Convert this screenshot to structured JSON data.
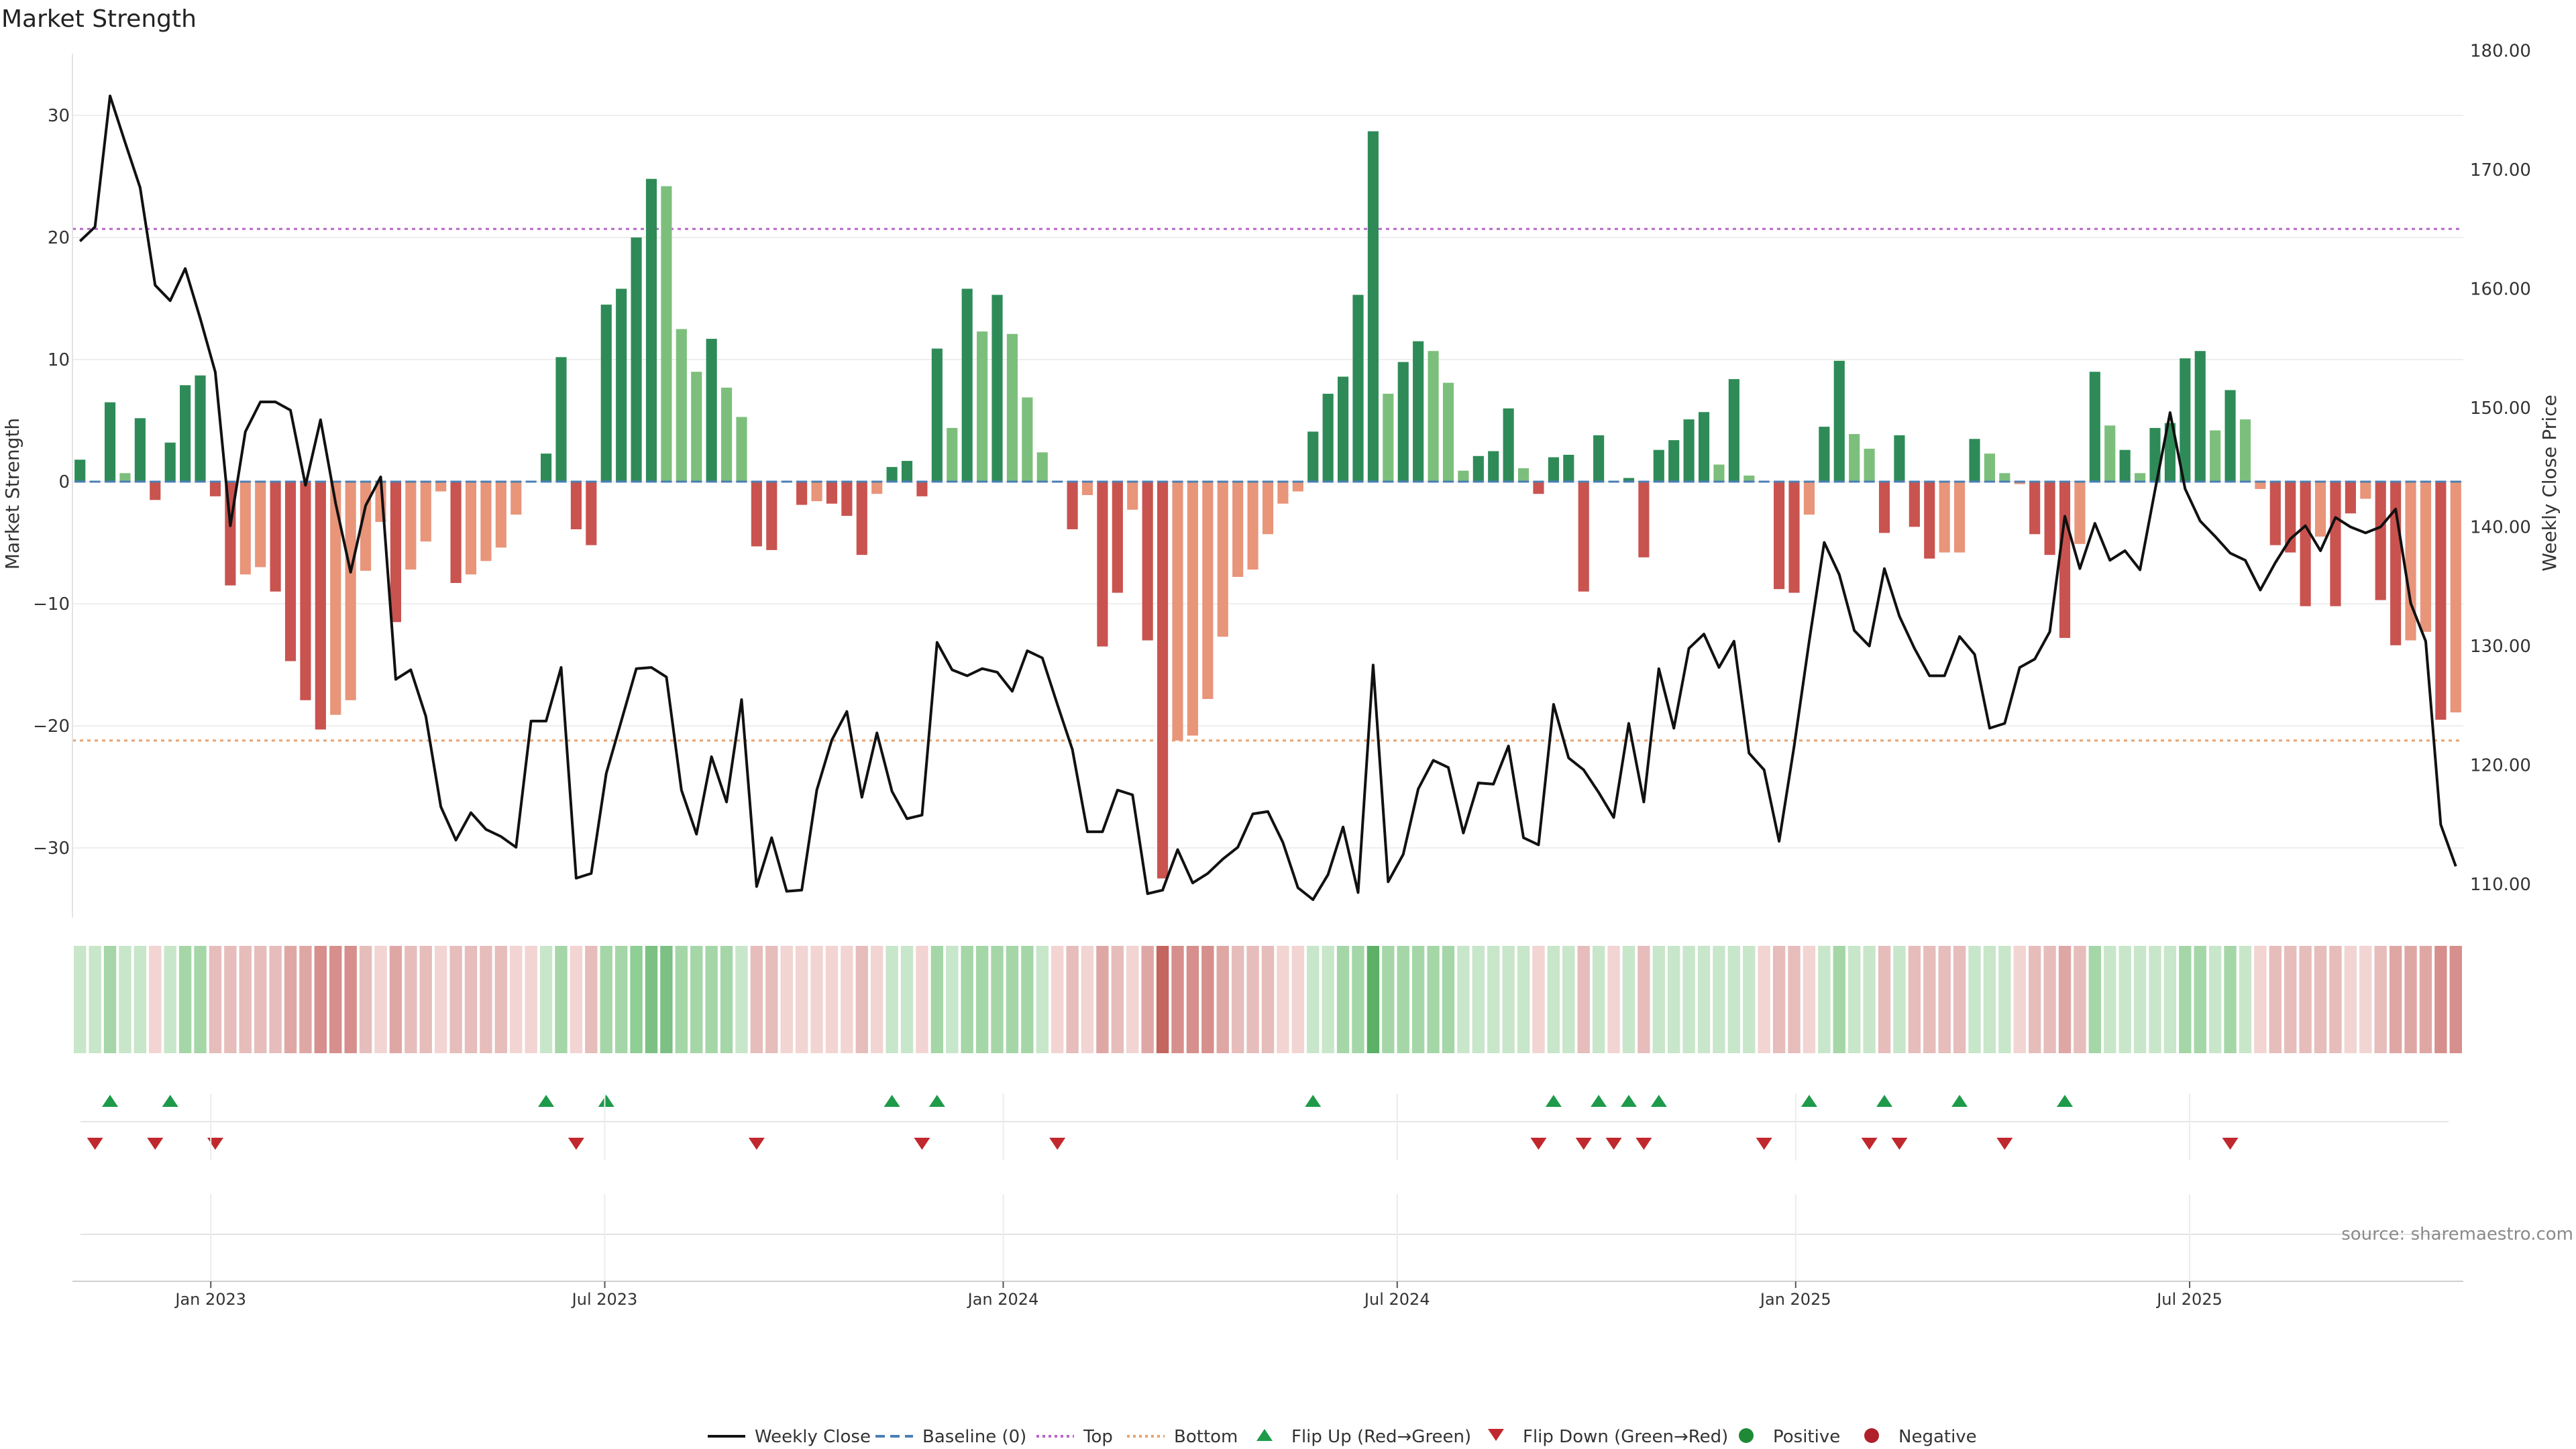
{
  "chart_data": {
    "type": "bar",
    "title": "Market Strength",
    "ylabel_left": "Market Strength",
    "ylabel_right": "Weekly Close Price",
    "source": "source: sharemaestro.com",
    "ylim_left": [
      -35,
      35
    ],
    "yticks_left": [
      30,
      20,
      10,
      0,
      -10,
      -20,
      -30
    ],
    "ytick_labels_left": [
      "30",
      "20",
      "10",
      "0",
      "−10",
      "−20",
      "−30"
    ],
    "ylim_right": [
      110,
      180
    ],
    "yticks_right": [
      180,
      170,
      160,
      150,
      140,
      130,
      120,
      110
    ],
    "ytick_labels_right": [
      "180.00",
      "170.00",
      "160.00",
      "150.00",
      "140.00",
      "130.00",
      "120.00",
      "110.00"
    ],
    "xlim_week": [
      -0.5,
      158.5
    ],
    "xtick_weeks": [
      8.7,
      34.9,
      61.4,
      87.6,
      114.1,
      140.3
    ],
    "xtick_labels": [
      "Jan 2023",
      "Jul 2023",
      "Jan 2024",
      "Jul 2024",
      "Jan 2025",
      "Jul 2025"
    ],
    "top_line": 20.7,
    "bottom_line": -21.2,
    "strength": [
      1.8,
      0,
      6.5,
      0.7,
      5.2,
      -1.5,
      3.2,
      7.9,
      8.7,
      -1.2,
      -8.5,
      -7.6,
      -7,
      -9,
      -14.7,
      -17.9,
      -20.3,
      -19.1,
      -17.9,
      -7.3,
      -3.3,
      -11.5,
      -7.2,
      -4.9,
      -0.8,
      -8.3,
      -7.6,
      -6.5,
      -5.4,
      -2.7,
      0,
      2.3,
      10.2,
      -3.9,
      -5.2,
      14.5,
      15.8,
      20,
      24.8,
      24.2,
      12.5,
      9,
      11.7,
      7.7,
      5.3,
      -5.3,
      -5.6,
      0,
      -1.9,
      -1.6,
      -1.8,
      -2.8,
      -6,
      -1,
      1.2,
      1.7,
      -1.2,
      10.9,
      4.4,
      15.8,
      12.3,
      15.3,
      12.1,
      6.9,
      2.4,
      0,
      -3.9,
      -1.1,
      -13.5,
      -9.1,
      -2.3,
      -13,
      -32.5,
      -21.2,
      -20.8,
      -17.8,
      -12.7,
      -7.8,
      -7.2,
      -4.3,
      -1.8,
      -0.8,
      4.1,
      7.2,
      8.6,
      15.3,
      28.7,
      7.2,
      9.8,
      11.5,
      10.7,
      8.1,
      0.9,
      2.1,
      2.5,
      6,
      1.1,
      -1,
      2,
      2.2,
      -9,
      3.8,
      0,
      0.3,
      -6.2,
      2.6,
      3.4,
      5.1,
      5.7,
      1.4,
      8.4,
      0.5,
      0,
      -8.8,
      -9.1,
      -2.7,
      4.5,
      9.9,
      3.9,
      2.7,
      -4.2,
      3.8,
      -3.7,
      -6.3,
      -5.8,
      -5.8,
      3.5,
      2.3,
      0.7,
      -0.2,
      -4.3,
      -6,
      -12.8,
      -5.1,
      9,
      4.6,
      2.6,
      0.7,
      4.4,
      4.8,
      10.1,
      10.7,
      4.2,
      7.5,
      5.1,
      -0.6,
      -5.2,
      -5.8,
      -10.2,
      -4.5,
      -10.2,
      -2.6,
      -1.4,
      -9.7,
      -13.4,
      -13,
      -12.3,
      -19.5,
      -18.9
    ],
    "bar_colors": [
      "#2e8b57",
      "#7cbf7c",
      "#2e8b57",
      "#7cbf7c",
      "#2e8b57",
      "#c9534f",
      "#2e8b57",
      "#2e8b57",
      "#2e8b57",
      "#c9534f",
      "#c9534f",
      "#e8957a",
      "#e8957a",
      "#c9534f",
      "#c9534f",
      "#c9534f",
      "#c9534f",
      "#e8957a",
      "#e8957a",
      "#e8957a",
      "#e8957a",
      "#c9534f",
      "#e8957a",
      "#e8957a",
      "#e8957a",
      "#c9534f",
      "#e8957a",
      "#e8957a",
      "#e8957a",
      "#e8957a",
      "#7cbf7c",
      "#2e8b57",
      "#2e8b57",
      "#c9534f",
      "#c9534f",
      "#2e8b57",
      "#2e8b57",
      "#2e8b57",
      "#2e8b57",
      "#7cbf7c",
      "#7cbf7c",
      "#7cbf7c",
      "#2e8b57",
      "#7cbf7c",
      "#7cbf7c",
      "#c9534f",
      "#c9534f",
      "#7cbf7c",
      "#c9534f",
      "#e8957a",
      "#c9534f",
      "#c9534f",
      "#c9534f",
      "#e8957a",
      "#2e8b57",
      "#2e8b57",
      "#c9534f",
      "#2e8b57",
      "#7cbf7c",
      "#2e8b57",
      "#7cbf7c",
      "#2e8b57",
      "#7cbf7c",
      "#7cbf7c",
      "#7cbf7c",
      "#7cbf7c",
      "#c9534f",
      "#e8957a",
      "#c9534f",
      "#c9534f",
      "#e8957a",
      "#c9534f",
      "#c9534f",
      "#e8957a",
      "#e8957a",
      "#e8957a",
      "#e8957a",
      "#e8957a",
      "#e8957a",
      "#e8957a",
      "#e8957a",
      "#e8957a",
      "#2e8b57",
      "#2e8b57",
      "#2e8b57",
      "#2e8b57",
      "#2e8b57",
      "#7cbf7c",
      "#2e8b57",
      "#2e8b57",
      "#7cbf7c",
      "#7cbf7c",
      "#7cbf7c",
      "#2e8b57",
      "#2e8b57",
      "#2e8b57",
      "#7cbf7c",
      "#c9534f",
      "#2e8b57",
      "#2e8b57",
      "#c9534f",
      "#2e8b57",
      "#7cbf7c",
      "#2e8b57",
      "#c9534f",
      "#2e8b57",
      "#2e8b57",
      "#2e8b57",
      "#2e8b57",
      "#7cbf7c",
      "#2e8b57",
      "#7cbf7c",
      "#7cbf7c",
      "#c9534f",
      "#c9534f",
      "#e8957a",
      "#2e8b57",
      "#2e8b57",
      "#7cbf7c",
      "#7cbf7c",
      "#c9534f",
      "#2e8b57",
      "#c9534f",
      "#c9534f",
      "#e8957a",
      "#e8957a",
      "#2e8b57",
      "#7cbf7c",
      "#7cbf7c",
      "#e8957a",
      "#c9534f",
      "#c9534f",
      "#c9534f",
      "#e8957a",
      "#2e8b57",
      "#7cbf7c",
      "#2e8b57",
      "#7cbf7c",
      "#2e8b57",
      "#2e8b57",
      "#2e8b57",
      "#2e8b57",
      "#7cbf7c",
      "#2e8b57",
      "#7cbf7c",
      "#e8957a",
      "#c9534f",
      "#c9534f",
      "#c9534f",
      "#e8957a",
      "#c9534f",
      "#c9534f",
      "#e8957a",
      "#c9534f",
      "#c9534f",
      "#e8957a",
      "#e8957a",
      "#c9534f",
      "#e8957a"
    ],
    "price_nodes": [
      [
        0,
        164
      ],
      [
        1,
        165.2
      ],
      [
        2,
        176.2
      ],
      [
        3,
        172.3
      ],
      [
        4,
        168.5
      ],
      [
        5,
        160.3
      ],
      [
        6,
        159
      ],
      [
        7,
        161.7
      ],
      [
        8,
        157.5
      ],
      [
        9,
        153
      ],
      [
        10,
        140.1
      ],
      [
        11,
        148
      ],
      [
        12,
        150.5
      ],
      [
        13,
        150.5
      ],
      [
        14,
        149.8
      ],
      [
        15,
        143.5
      ],
      [
        16,
        149
      ],
      [
        17,
        142
      ],
      [
        18,
        136.2
      ],
      [
        19,
        141.8
      ],
      [
        20,
        144.2
      ],
      [
        21,
        127.2
      ],
      [
        22,
        128
      ],
      [
        23,
        124.1
      ],
      [
        24,
        116.5
      ],
      [
        25,
        113.7
      ],
      [
        26,
        116
      ],
      [
        27,
        114.6
      ],
      [
        28,
        114
      ],
      [
        29,
        113.1
      ],
      [
        30,
        123.7
      ],
      [
        31,
        123.7
      ],
      [
        32,
        128.2
      ],
      [
        33,
        110.5
      ],
      [
        34,
        110.9
      ],
      [
        35,
        119.3
      ],
      [
        36,
        123.7
      ],
      [
        37,
        128.1
      ],
      [
        38,
        128.2
      ],
      [
        39,
        127.4
      ],
      [
        40,
        117.9
      ],
      [
        41,
        114.2
      ],
      [
        42,
        120.7
      ],
      [
        43,
        116.9
      ],
      [
        44,
        125.5
      ],
      [
        45,
        109.8
      ],
      [
        46,
        113.9
      ],
      [
        47,
        109.4
      ],
      [
        48,
        109.5
      ],
      [
        49,
        117.9
      ],
      [
        50,
        122.1
      ],
      [
        51,
        124.5
      ],
      [
        52,
        117.3
      ],
      [
        53,
        122.7
      ],
      [
        54,
        117.8
      ],
      [
        55,
        115.5
      ],
      [
        56,
        115.8
      ],
      [
        57,
        130.3
      ],
      [
        58,
        128
      ],
      [
        59,
        127.5
      ],
      [
        60,
        128.1
      ],
      [
        61,
        127.8
      ],
      [
        62,
        126.2
      ],
      [
        63,
        129.6
      ],
      [
        64,
        129
      ],
      [
        65,
        125.1
      ],
      [
        66,
        121.3
      ],
      [
        67,
        114.4
      ],
      [
        68,
        114.4
      ],
      [
        69,
        117.9
      ],
      [
        70,
        117.5
      ],
      [
        71,
        109.2
      ],
      [
        72,
        109.5
      ],
      [
        73,
        112.9
      ],
      [
        74,
        110.1
      ],
      [
        75,
        110.9
      ],
      [
        76,
        112.1
      ],
      [
        77,
        113.1
      ],
      [
        78,
        115.9
      ],
      [
        79,
        116.1
      ],
      [
        80,
        113.5
      ],
      [
        81,
        109.7
      ],
      [
        82,
        108.7
      ],
      [
        83,
        110.8
      ],
      [
        84,
        114.8
      ],
      [
        85,
        109.3
      ],
      [
        86,
        128.4
      ],
      [
        87,
        110.2
      ],
      [
        88,
        112.5
      ],
      [
        89,
        118
      ],
      [
        90,
        120.4
      ],
      [
        91,
        119.8
      ],
      [
        92,
        114.3
      ],
      [
        93,
        118.5
      ],
      [
        94,
        118.4
      ],
      [
        95,
        121.6
      ],
      [
        96,
        113.9
      ],
      [
        97,
        113.3
      ],
      [
        98,
        125.1
      ],
      [
        99,
        120.6
      ],
      [
        100,
        119.6
      ],
      [
        101,
        117.7
      ],
      [
        102,
        115.6
      ],
      [
        103,
        123.5
      ],
      [
        104,
        116.9
      ],
      [
        105,
        128.1
      ],
      [
        106,
        123.1
      ],
      [
        107,
        129.8
      ],
      [
        108,
        131
      ],
      [
        109,
        128.2
      ],
      [
        110,
        130.4
      ],
      [
        111,
        121
      ],
      [
        112,
        119.6
      ],
      [
        113,
        113.6
      ],
      [
        114,
        121.6
      ],
      [
        115,
        130.4
      ],
      [
        116,
        138.7
      ],
      [
        117,
        136
      ],
      [
        118,
        131.3
      ],
      [
        119,
        130
      ],
      [
        120,
        136.5
      ],
      [
        121,
        132.5
      ],
      [
        122,
        129.8
      ],
      [
        123,
        127.5
      ],
      [
        124,
        127.5
      ],
      [
        125,
        130.8
      ],
      [
        126,
        129.3
      ],
      [
        127,
        123.1
      ],
      [
        128,
        123.5
      ],
      [
        129,
        128.2
      ],
      [
        130,
        128.9
      ],
      [
        131,
        131.2
      ],
      [
        132,
        140.9
      ],
      [
        133,
        136.5
      ],
      [
        134,
        140.3
      ],
      [
        135,
        137.2
      ],
      [
        136,
        138
      ],
      [
        137,
        136.4
      ],
      [
        138,
        143.1
      ],
      [
        139,
        149.6
      ],
      [
        140,
        143.2
      ],
      [
        141,
        140.5
      ],
      [
        142,
        139.2
      ],
      [
        143,
        137.8
      ],
      [
        144,
        137.2
      ],
      [
        145,
        134.7
      ],
      [
        146,
        137
      ],
      [
        147,
        139
      ],
      [
        148,
        140.1
      ],
      [
        149,
        138
      ],
      [
        150,
        140.8
      ],
      [
        151,
        140
      ],
      [
        152,
        139.5
      ],
      [
        153,
        140
      ],
      [
        154,
        141.5
      ],
      [
        155,
        133.6
      ],
      [
        156,
        130.4
      ],
      [
        157,
        115
      ],
      [
        158,
        111.5
      ]
    ],
    "heat_colors": [
      "#c8e6c9",
      "#c8e6c9",
      "#a5d6a7",
      "#c8e6c9",
      "#c8e6c9",
      "#f2d4d3",
      "#c8e6c9",
      "#a5d6a7",
      "#a5d6a7",
      "#e6bdbb",
      "#e6bdbb",
      "#e6bdbb",
      "#e6bdbb",
      "#e6bdbb",
      "#dfa7a4",
      "#dfa7a4",
      "#d68f8c",
      "#d68f8c",
      "#d68f8c",
      "#e6bdbb",
      "#f2d4d3",
      "#dfa7a4",
      "#e6bdbb",
      "#e6bdbb",
      "#f2d4d3",
      "#e6bdbb",
      "#e6bdbb",
      "#e6bdbb",
      "#e6bdbb",
      "#f2d4d3",
      "#f2d4d3",
      "#c8e6c9",
      "#a5d6a7",
      "#f2d4d3",
      "#e6bdbb",
      "#a5d6a7",
      "#a5d6a7",
      "#8fce94",
      "#7cc083",
      "#7cc083",
      "#a5d6a7",
      "#a5d6a7",
      "#a5d6a7",
      "#a5d6a7",
      "#c8e6c9",
      "#e6bdbb",
      "#e6bdbb",
      "#f2d4d3",
      "#f2d4d3",
      "#f2d4d3",
      "#f2d4d3",
      "#f2d4d3",
      "#e6bdbb",
      "#f2d4d3",
      "#c8e6c9",
      "#c8e6c9",
      "#f2d4d3",
      "#a5d6a7",
      "#c8e6c9",
      "#a5d6a7",
      "#a5d6a7",
      "#a5d6a7",
      "#a5d6a7",
      "#a5d6a7",
      "#c8e6c9",
      "#f2d4d3",
      "#e6bdbb",
      "#f2d4d3",
      "#dfa7a4",
      "#e6bdbb",
      "#f2d4d3",
      "#dfa7a4",
      "#c4655f",
      "#d68f8c",
      "#d68f8c",
      "#d68f8c",
      "#dfa7a4",
      "#e6bdbb",
      "#e6bdbb",
      "#e6bdbb",
      "#f2d4d3",
      "#f2d4d3",
      "#c8e6c9",
      "#c8e6c9",
      "#a5d6a7",
      "#a5d6a7",
      "#5cb167",
      "#a5d6a7",
      "#a5d6a7",
      "#a5d6a7",
      "#a5d6a7",
      "#a5d6a7",
      "#c8e6c9",
      "#c8e6c9",
      "#c8e6c9",
      "#c8e6c9",
      "#c8e6c9",
      "#f2d4d3",
      "#c8e6c9",
      "#c8e6c9",
      "#e6bdbb",
      "#c8e6c9",
      "#f2d4d3",
      "#c8e6c9",
      "#e6bdbb",
      "#c8e6c9",
      "#c8e6c9",
      "#c8e6c9",
      "#c8e6c9",
      "#c8e6c9",
      "#c8e6c9",
      "#c8e6c9",
      "#f2d4d3",
      "#e6bdbb",
      "#e6bdbb",
      "#f2d4d3",
      "#c8e6c9",
      "#a5d6a7",
      "#c8e6c9",
      "#c8e6c9",
      "#e6bdbb",
      "#c8e6c9",
      "#e6bdbb",
      "#e6bdbb",
      "#e6bdbb",
      "#e6bdbb",
      "#c8e6c9",
      "#c8e6c9",
      "#c8e6c9",
      "#f2d4d3",
      "#e6bdbb",
      "#e6bdbb",
      "#dfa7a4",
      "#e6bdbb",
      "#a5d6a7",
      "#c8e6c9",
      "#c8e6c9",
      "#c8e6c9",
      "#c8e6c9",
      "#c8e6c9",
      "#a5d6a7",
      "#a5d6a7",
      "#c8e6c9",
      "#a5d6a7",
      "#c8e6c9",
      "#f2d4d3",
      "#e6bdbb",
      "#e6bdbb",
      "#e6bdbb",
      "#e6bdbb",
      "#e6bdbb",
      "#f2d4d3",
      "#f2d4d3",
      "#e6bdbb",
      "#dfa7a4",
      "#dfa7a4",
      "#dfa7a4",
      "#d68f8c",
      "#d68f8c"
    ],
    "flip_up_weeks": [
      2,
      6,
      31,
      35,
      54,
      57,
      82,
      98,
      101,
      103,
      105,
      115,
      120,
      125,
      132
    ],
    "flip_down_weeks": [
      1,
      5,
      9,
      33,
      45,
      56,
      65,
      97,
      100,
      102,
      104,
      112,
      119,
      121,
      128,
      143
    ],
    "legend": [
      "Weekly Close",
      "Baseline (0)",
      "Top",
      "Bottom",
      "Flip Up (Red→Green)",
      "Flip Down (Green→Red)",
      "Positive",
      "Negative"
    ],
    "colors": {
      "strong_positive": "#2e8b57",
      "weak_positive": "#7cbf7c",
      "strong_negative": "#c9534f",
      "weak_negative": "#e8957a",
      "price_line": "#111111",
      "baseline": "#4a7fb5",
      "top_line": "#b866c9",
      "bottom_line": "#e8a26f",
      "flip_up": "#1e9a4a",
      "flip_down": "#c0282d",
      "positive_dot": "#1e8a36",
      "negative_dot": "#b0202b"
    }
  }
}
